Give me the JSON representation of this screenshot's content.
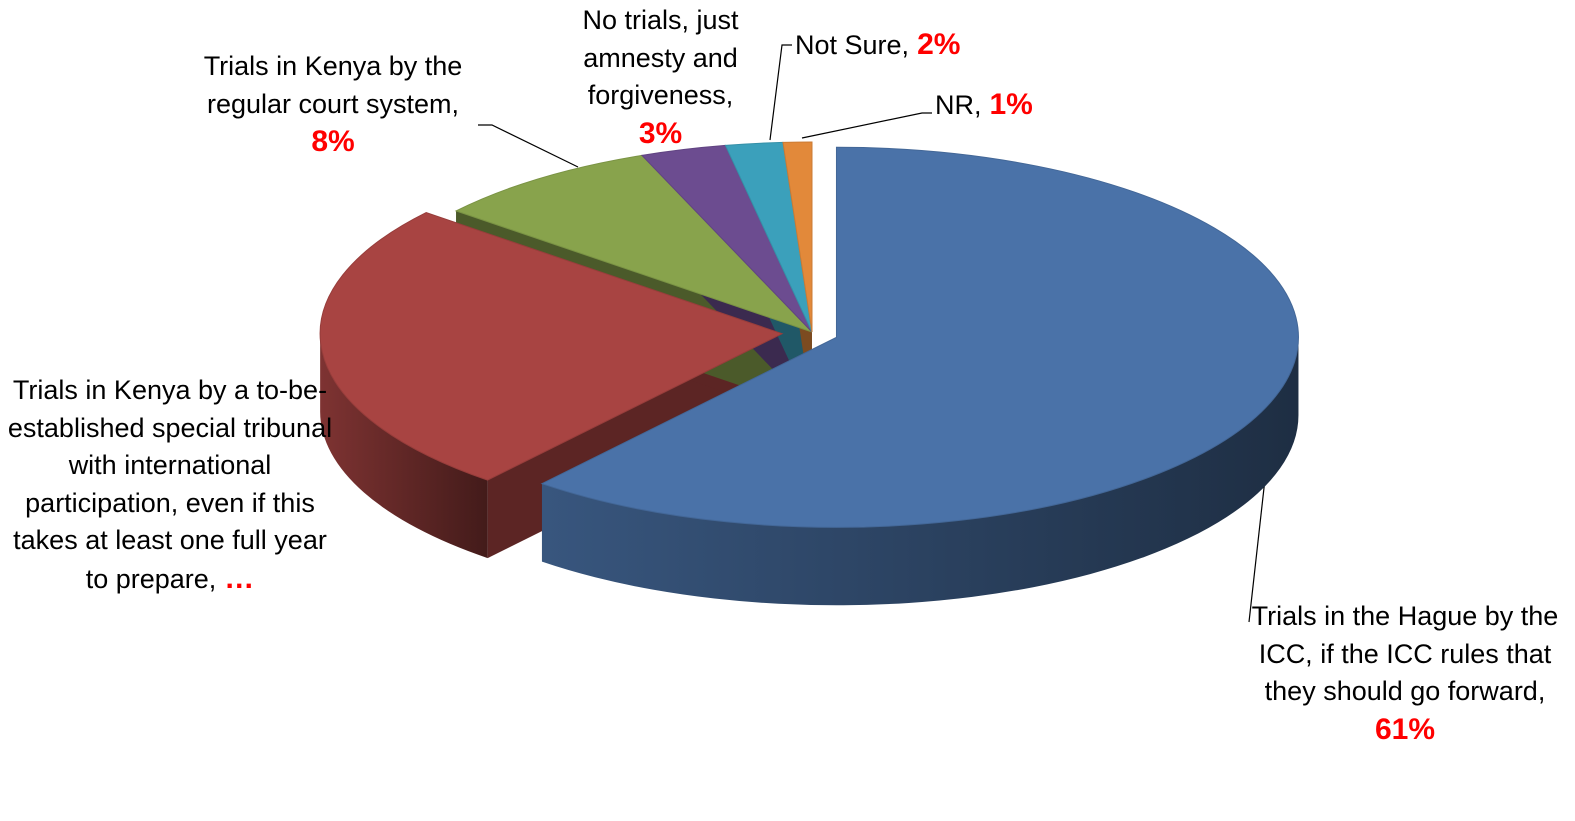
{
  "chart_data": {
    "type": "pie3d",
    "categories": [
      "Trials in the Hague by the ICC, if the ICC rules that they should go forward,",
      "Trials in Kenya by a to-be-established special tribunal with international participation, even if this takes at least one full year to prepare,",
      "Trials in Kenya by the regular court system,",
      "No trials, just amnesty and forgiveness,",
      "Not Sure,",
      "NR,"
    ],
    "values": [
      61,
      25,
      8,
      3,
      2,
      1
    ],
    "value_labels": [
      "61%",
      "…",
      "8%",
      "3%",
      "2%",
      "1%"
    ],
    "colors": [
      "#4a72a8",
      "#a84442",
      "#88a34c",
      "#6c4c90",
      "#3ba0bb",
      "#e2893a"
    ]
  }
}
